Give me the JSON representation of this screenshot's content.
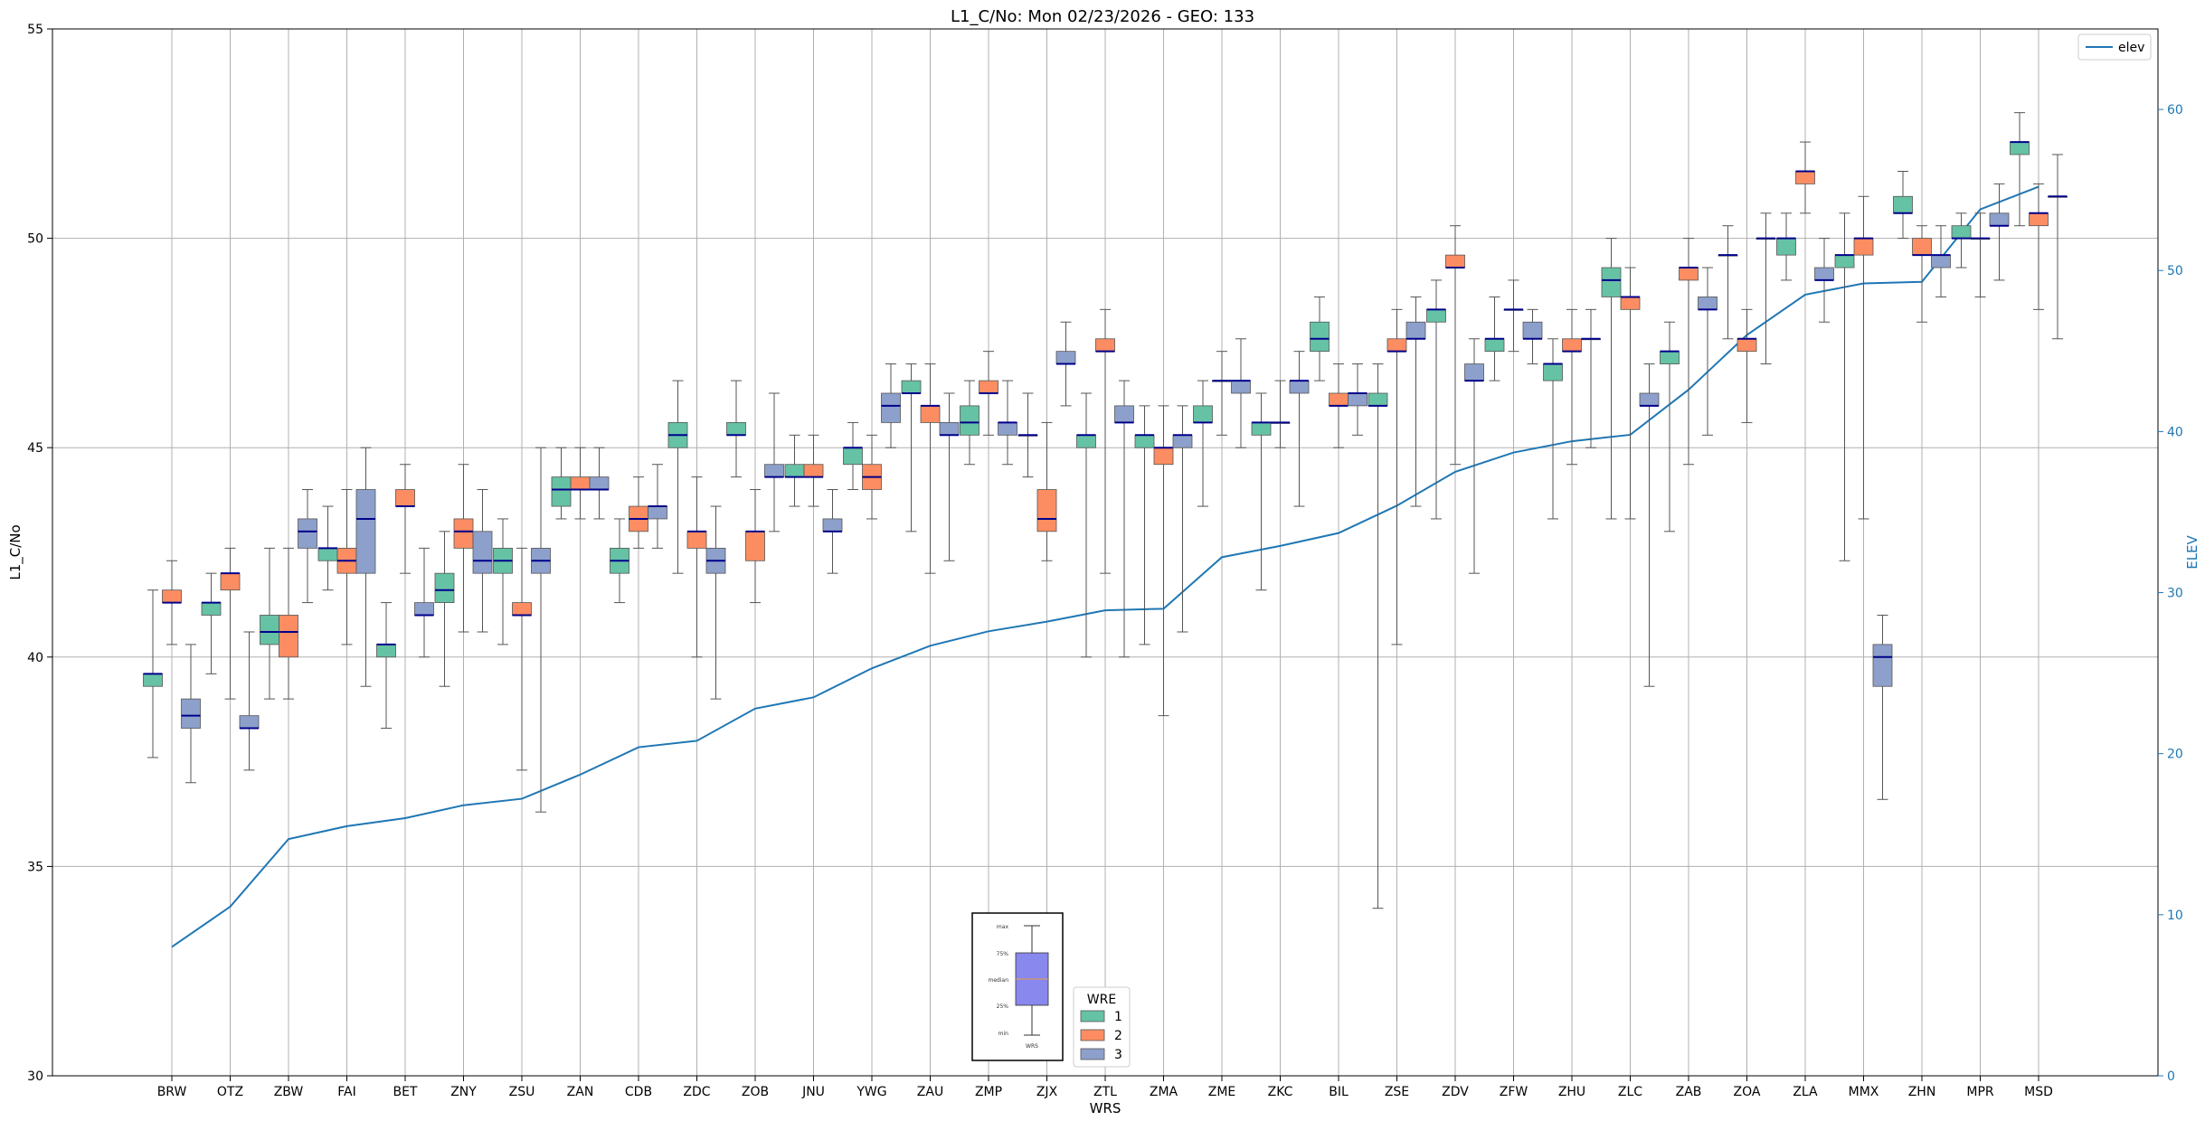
{
  "chart_data": {
    "type": "box",
    "title": "L1_C/No: Mon 02/23/2026 - GEO: 133",
    "xlabel": "WRS",
    "ylabel": "L1_C/No",
    "ylabel_right": "ELEV",
    "ylim": [
      30,
      55
    ],
    "ylim_right": [
      0,
      65
    ],
    "yticks": [
      30,
      35,
      40,
      45,
      50,
      55
    ],
    "yticks_right": [
      0,
      10,
      20,
      30,
      40,
      50,
      60
    ],
    "grid": true,
    "colors": {
      "1": "#66c2a5",
      "2": "#fc8d62",
      "3": "#8da0cb",
      "elev": "#1f77b4",
      "median": "#00008b"
    },
    "categories": [
      "BRW",
      "OTZ",
      "ZBW",
      "FAI",
      "BET",
      "ZNY",
      "ZSU",
      "ZAN",
      "CDB",
      "ZDC",
      "ZOB",
      "JNU",
      "YWG",
      "ZAU",
      "ZMP",
      "ZJX",
      "ZTL",
      "ZMA",
      "ZME",
      "ZKC",
      "BIL",
      "ZSE",
      "ZDV",
      "ZFW",
      "ZHU",
      "ZLC",
      "ZAB",
      "ZOA",
      "ZLA",
      "MMX",
      "ZHN",
      "MPR",
      "MSD"
    ],
    "elev_series": {
      "name": "elev",
      "values": [
        8,
        10.5,
        14.7,
        15.5,
        16,
        16.8,
        17.2,
        18.7,
        20.4,
        20.8,
        22.8,
        23.5,
        25.3,
        26.7,
        27.6,
        28.2,
        28.9,
        29,
        32.2,
        32.9,
        33.7,
        35.4,
        37.5,
        38.7,
        39.4,
        39.8,
        42.6,
        46,
        48.5,
        49.2,
        49.3,
        53.8,
        55.2
      ]
    },
    "legend": {
      "title": "WRE",
      "entries": [
        "1",
        "2",
        "3"
      ],
      "elev_label": "elev"
    },
    "inset": {
      "labels": [
        "max",
        "75%",
        "median",
        "25%",
        "min"
      ],
      "xlabel": "WRS"
    },
    "boxes": [
      {
        "cat": "BRW",
        "wre": "1",
        "min": 37.6,
        "q1": 39.3,
        "median": 39.6,
        "q3": 39.6,
        "max": 41.6
      },
      {
        "cat": "BRW",
        "wre": "2",
        "min": 40.3,
        "q1": 41.3,
        "median": 41.3,
        "q3": 41.6,
        "max": 42.3
      },
      {
        "cat": "BRW",
        "wre": "3",
        "min": 37.0,
        "q1": 38.3,
        "median": 38.6,
        "q3": 39.0,
        "max": 40.3
      },
      {
        "cat": "OTZ",
        "wre": "1",
        "min": 39.6,
        "q1": 41.0,
        "median": 41.3,
        "q3": 41.3,
        "max": 42.0
      },
      {
        "cat": "OTZ",
        "wre": "2",
        "min": 39.0,
        "q1": 41.6,
        "median": 42.0,
        "q3": 42.0,
        "max": 42.6
      },
      {
        "cat": "OTZ",
        "wre": "3",
        "min": 37.3,
        "q1": 38.3,
        "median": 38.3,
        "q3": 38.6,
        "max": 40.6
      },
      {
        "cat": "ZBW",
        "wre": "1",
        "min": 39.0,
        "q1": 40.3,
        "median": 40.6,
        "q3": 41.0,
        "max": 42.6
      },
      {
        "cat": "ZBW",
        "wre": "2",
        "min": 39.0,
        "q1": 40.0,
        "median": 40.6,
        "q3": 41.0,
        "max": 42.6
      },
      {
        "cat": "ZBW",
        "wre": "3",
        "min": 41.3,
        "q1": 42.6,
        "median": 43.0,
        "q3": 43.3,
        "max": 44.0
      },
      {
        "cat": "FAI",
        "wre": "1",
        "min": 41.6,
        "q1": 42.3,
        "median": 42.6,
        "q3": 42.6,
        "max": 43.6
      },
      {
        "cat": "FAI",
        "wre": "2",
        "min": 40.3,
        "q1": 42.0,
        "median": 42.3,
        "q3": 42.6,
        "max": 44.0
      },
      {
        "cat": "FAI",
        "wre": "3",
        "min": 39.3,
        "q1": 42.0,
        "median": 43.3,
        "q3": 44.0,
        "max": 45.0
      },
      {
        "cat": "BET",
        "wre": "1",
        "min": 38.3,
        "q1": 40.0,
        "median": 40.3,
        "q3": 40.3,
        "max": 41.3
      },
      {
        "cat": "BET",
        "wre": "2",
        "min": 42.0,
        "q1": 43.6,
        "median": 43.6,
        "q3": 44.0,
        "max": 44.6
      },
      {
        "cat": "BET",
        "wre": "3",
        "min": 40.0,
        "q1": 41.0,
        "median": 41.0,
        "q3": 41.3,
        "max": 42.6
      },
      {
        "cat": "ZNY",
        "wre": "1",
        "min": 39.3,
        "q1": 41.3,
        "median": 41.6,
        "q3": 42.0,
        "max": 43.0
      },
      {
        "cat": "ZNY",
        "wre": "2",
        "min": 40.6,
        "q1": 42.6,
        "median": 43.0,
        "q3": 43.3,
        "max": 44.6
      },
      {
        "cat": "ZNY",
        "wre": "3",
        "min": 40.6,
        "q1": 42.0,
        "median": 42.3,
        "q3": 43.0,
        "max": 44.0
      },
      {
        "cat": "ZSU",
        "wre": "1",
        "min": 40.3,
        "q1": 42.0,
        "median": 42.3,
        "q3": 42.6,
        "max": 43.3
      },
      {
        "cat": "ZSU",
        "wre": "2",
        "min": 37.3,
        "q1": 41.0,
        "median": 41.0,
        "q3": 41.3,
        "max": 42.6
      },
      {
        "cat": "ZSU",
        "wre": "3",
        "min": 36.3,
        "q1": 42.0,
        "median": 42.3,
        "q3": 42.6,
        "max": 45.0
      },
      {
        "cat": "ZAN",
        "wre": "1",
        "min": 43.3,
        "q1": 43.6,
        "median": 44.0,
        "q3": 44.3,
        "max": 45.0
      },
      {
        "cat": "ZAN",
        "wre": "2",
        "min": 43.3,
        "q1": 44.0,
        "median": 44.0,
        "q3": 44.3,
        "max": 45.0
      },
      {
        "cat": "ZAN",
        "wre": "3",
        "min": 43.3,
        "q1": 44.0,
        "median": 44.0,
        "q3": 44.3,
        "max": 45.0
      },
      {
        "cat": "CDB",
        "wre": "1",
        "min": 41.3,
        "q1": 42.0,
        "median": 42.3,
        "q3": 42.6,
        "max": 43.3
      },
      {
        "cat": "CDB",
        "wre": "2",
        "min": 42.6,
        "q1": 43.0,
        "median": 43.3,
        "q3": 43.6,
        "max": 44.3
      },
      {
        "cat": "CDB",
        "wre": "3",
        "min": 42.6,
        "q1": 43.3,
        "median": 43.6,
        "q3": 43.6,
        "max": 44.6
      },
      {
        "cat": "ZDC",
        "wre": "1",
        "min": 42.0,
        "q1": 45.0,
        "median": 45.3,
        "q3": 45.6,
        "max": 46.6
      },
      {
        "cat": "ZDC",
        "wre": "2",
        "min": 40.0,
        "q1": 42.6,
        "median": 43.0,
        "q3": 43.0,
        "max": 44.3
      },
      {
        "cat": "ZDC",
        "wre": "3",
        "min": 39.0,
        "q1": 42.0,
        "median": 42.3,
        "q3": 42.6,
        "max": 43.6
      },
      {
        "cat": "ZOB",
        "wre": "1",
        "min": 44.3,
        "q1": 45.3,
        "median": 45.3,
        "q3": 45.6,
        "max": 46.6
      },
      {
        "cat": "ZOB",
        "wre": "2",
        "min": 41.3,
        "q1": 42.3,
        "median": 43.0,
        "q3": 43.0,
        "max": 44.0
      },
      {
        "cat": "ZOB",
        "wre": "3",
        "min": 43.0,
        "q1": 44.3,
        "median": 44.3,
        "q3": 44.6,
        "max": 46.3
      },
      {
        "cat": "JNU",
        "wre": "1",
        "min": 43.6,
        "q1": 44.3,
        "median": 44.3,
        "q3": 44.6,
        "max": 45.3
      },
      {
        "cat": "JNU",
        "wre": "2",
        "min": 43.6,
        "q1": 44.3,
        "median": 44.3,
        "q3": 44.6,
        "max": 45.3
      },
      {
        "cat": "JNU",
        "wre": "3",
        "min": 42.0,
        "q1": 43.0,
        "median": 43.0,
        "q3": 43.3,
        "max": 44.0
      },
      {
        "cat": "YWG",
        "wre": "1",
        "min": 44.0,
        "q1": 44.6,
        "median": 45.0,
        "q3": 45.0,
        "max": 45.6
      },
      {
        "cat": "YWG",
        "wre": "2",
        "min": 43.3,
        "q1": 44.0,
        "median": 44.3,
        "q3": 44.6,
        "max": 45.3
      },
      {
        "cat": "YWG",
        "wre": "3",
        "min": 45.0,
        "q1": 45.6,
        "median": 46.0,
        "q3": 46.3,
        "max": 47.0
      },
      {
        "cat": "ZAU",
        "wre": "1",
        "min": 43.0,
        "q1": 46.3,
        "median": 46.3,
        "q3": 46.6,
        "max": 47.0
      },
      {
        "cat": "ZAU",
        "wre": "2",
        "min": 42.0,
        "q1": 45.6,
        "median": 46.0,
        "q3": 46.0,
        "max": 47.0
      },
      {
        "cat": "ZAU",
        "wre": "3",
        "min": 42.3,
        "q1": 45.3,
        "median": 45.3,
        "q3": 45.6,
        "max": 46.3
      },
      {
        "cat": "ZMP",
        "wre": "1",
        "min": 44.6,
        "q1": 45.3,
        "median": 45.6,
        "q3": 46.0,
        "max": 46.6
      },
      {
        "cat": "ZMP",
        "wre": "2",
        "min": 45.3,
        "q1": 46.3,
        "median": 46.3,
        "q3": 46.6,
        "max": 47.3
      },
      {
        "cat": "ZMP",
        "wre": "3",
        "min": 44.6,
        "q1": 45.3,
        "median": 45.6,
        "q3": 45.6,
        "max": 46.6
      },
      {
        "cat": "ZJX",
        "wre": "1",
        "min": 44.3,
        "q1": 45.3,
        "median": 45.3,
        "q3": 45.3,
        "max": 46.3
      },
      {
        "cat": "ZJX",
        "wre": "2",
        "min": 42.3,
        "q1": 43.0,
        "median": 43.3,
        "q3": 44.0,
        "max": 45.6
      },
      {
        "cat": "ZJX",
        "wre": "3",
        "min": 46.0,
        "q1": 47.0,
        "median": 47.0,
        "q3": 47.3,
        "max": 48.0
      },
      {
        "cat": "ZTL",
        "wre": "1",
        "min": 40.0,
        "q1": 45.0,
        "median": 45.3,
        "q3": 45.3,
        "max": 46.3
      },
      {
        "cat": "ZTL",
        "wre": "2",
        "min": 42.0,
        "q1": 47.3,
        "median": 47.3,
        "q3": 47.6,
        "max": 48.3
      },
      {
        "cat": "ZTL",
        "wre": "3",
        "min": 40.0,
        "q1": 45.6,
        "median": 45.6,
        "q3": 46.0,
        "max": 46.6
      },
      {
        "cat": "ZMA",
        "wre": "1",
        "min": 40.3,
        "q1": 45.0,
        "median": 45.3,
        "q3": 45.3,
        "max": 46.0
      },
      {
        "cat": "ZMA",
        "wre": "2",
        "min": 38.6,
        "q1": 44.6,
        "median": 45.0,
        "q3": 45.0,
        "max": 46.0
      },
      {
        "cat": "ZMA",
        "wre": "3",
        "min": 40.6,
        "q1": 45.0,
        "median": 45.3,
        "q3": 45.3,
        "max": 46.0
      },
      {
        "cat": "ZME",
        "wre": "1",
        "min": 43.6,
        "q1": 45.6,
        "median": 45.6,
        "q3": 46.0,
        "max": 46.6
      },
      {
        "cat": "ZME",
        "wre": "2",
        "min": 45.3,
        "q1": 46.6,
        "median": 46.6,
        "q3": 46.6,
        "max": 47.3
      },
      {
        "cat": "ZME",
        "wre": "3",
        "min": 45.0,
        "q1": 46.3,
        "median": 46.6,
        "q3": 46.6,
        "max": 47.6
      },
      {
        "cat": "ZKC",
        "wre": "1",
        "min": 41.6,
        "q1": 45.3,
        "median": 45.6,
        "q3": 45.6,
        "max": 46.3
      },
      {
        "cat": "ZKC",
        "wre": "2",
        "min": 45.0,
        "q1": 45.6,
        "median": 45.6,
        "q3": 45.6,
        "max": 46.6
      },
      {
        "cat": "ZKC",
        "wre": "3",
        "min": 43.6,
        "q1": 46.3,
        "median": 46.6,
        "q3": 46.6,
        "max": 47.3
      },
      {
        "cat": "BIL",
        "wre": "1",
        "min": 46.6,
        "q1": 47.3,
        "median": 47.6,
        "q3": 48.0,
        "max": 48.6
      },
      {
        "cat": "BIL",
        "wre": "2",
        "min": 45.0,
        "q1": 46.0,
        "median": 46.0,
        "q3": 46.3,
        "max": 47.0
      },
      {
        "cat": "BIL",
        "wre": "3",
        "min": 45.3,
        "q1": 46.0,
        "median": 46.3,
        "q3": 46.3,
        "max": 47.0
      },
      {
        "cat": "ZSE",
        "wre": "1",
        "min": 34.0,
        "q1": 46.0,
        "median": 46.0,
        "q3": 46.3,
        "max": 47.0
      },
      {
        "cat": "ZSE",
        "wre": "2",
        "min": 40.3,
        "q1": 47.3,
        "median": 47.3,
        "q3": 47.6,
        "max": 48.3
      },
      {
        "cat": "ZSE",
        "wre": "3",
        "min": 43.6,
        "q1": 47.6,
        "median": 47.6,
        "q3": 48.0,
        "max": 48.6
      },
      {
        "cat": "ZDV",
        "wre": "1",
        "min": 43.3,
        "q1": 48.0,
        "median": 48.3,
        "q3": 48.3,
        "max": 49.0
      },
      {
        "cat": "ZDV",
        "wre": "2",
        "min": 44.6,
        "q1": 49.3,
        "median": 49.3,
        "q3": 49.6,
        "max": 50.3
      },
      {
        "cat": "ZDV",
        "wre": "3",
        "min": 42.0,
        "q1": 46.6,
        "median": 46.6,
        "q3": 47.0,
        "max": 47.6
      },
      {
        "cat": "ZFW",
        "wre": "1",
        "min": 46.6,
        "q1": 47.3,
        "median": 47.6,
        "q3": 47.6,
        "max": 48.6
      },
      {
        "cat": "ZFW",
        "wre": "2",
        "min": 47.3,
        "q1": 48.3,
        "median": 48.3,
        "q3": 48.3,
        "max": 49.0
      },
      {
        "cat": "ZFW",
        "wre": "3",
        "min": 47.0,
        "q1": 47.6,
        "median": 47.6,
        "q3": 48.0,
        "max": 48.3
      },
      {
        "cat": "ZHU",
        "wre": "1",
        "min": 43.3,
        "q1": 46.6,
        "median": 47.0,
        "q3": 47.0,
        "max": 47.6
      },
      {
        "cat": "ZHU",
        "wre": "2",
        "min": 44.6,
        "q1": 47.3,
        "median": 47.3,
        "q3": 47.6,
        "max": 48.3
      },
      {
        "cat": "ZHU",
        "wre": "3",
        "min": 45.0,
        "q1": 47.6,
        "median": 47.6,
        "q3": 47.6,
        "max": 48.3
      },
      {
        "cat": "ZLC",
        "wre": "1",
        "min": 43.3,
        "q1": 48.6,
        "median": 49.0,
        "q3": 49.3,
        "max": 50.0
      },
      {
        "cat": "ZLC",
        "wre": "2",
        "min": 43.3,
        "q1": 48.3,
        "median": 48.6,
        "q3": 48.6,
        "max": 49.3
      },
      {
        "cat": "ZLC",
        "wre": "3",
        "min": 39.3,
        "q1": 46.0,
        "median": 46.0,
        "q3": 46.3,
        "max": 47.0
      },
      {
        "cat": "ZAB",
        "wre": "1",
        "min": 43.0,
        "q1": 47.0,
        "median": 47.3,
        "q3": 47.3,
        "max": 48.0
      },
      {
        "cat": "ZAB",
        "wre": "2",
        "min": 44.6,
        "q1": 49.0,
        "median": 49.3,
        "q3": 49.3,
        "max": 50.0
      },
      {
        "cat": "ZAB",
        "wre": "3",
        "min": 45.3,
        "q1": 48.3,
        "median": 48.3,
        "q3": 48.6,
        "max": 49.3
      },
      {
        "cat": "ZOA",
        "wre": "1",
        "min": 47.6,
        "q1": 49.6,
        "median": 49.6,
        "q3": 49.6,
        "max": 50.3
      },
      {
        "cat": "ZOA",
        "wre": "2",
        "min": 45.6,
        "q1": 47.3,
        "median": 47.6,
        "q3": 47.6,
        "max": 48.3
      },
      {
        "cat": "ZOA",
        "wre": "3",
        "min": 47.0,
        "q1": 50.0,
        "median": 50.0,
        "q3": 50.0,
        "max": 50.6
      },
      {
        "cat": "ZLA",
        "wre": "1",
        "min": 49.0,
        "q1": 49.6,
        "median": 50.0,
        "q3": 50.0,
        "max": 50.6
      },
      {
        "cat": "ZLA",
        "wre": "2",
        "min": 50.6,
        "q1": 51.3,
        "median": 51.6,
        "q3": 51.6,
        "max": 52.3
      },
      {
        "cat": "ZLA",
        "wre": "3",
        "min": 48.0,
        "q1": 49.0,
        "median": 49.0,
        "q3": 49.3,
        "max": 50.0
      },
      {
        "cat": "MMX",
        "wre": "1",
        "min": 42.3,
        "q1": 49.3,
        "median": 49.6,
        "q3": 49.6,
        "max": 50.6
      },
      {
        "cat": "MMX",
        "wre": "2",
        "min": 43.3,
        "q1": 49.6,
        "median": 50.0,
        "q3": 50.0,
        "max": 51.0
      },
      {
        "cat": "MMX",
        "wre": "3",
        "min": 36.6,
        "q1": 39.3,
        "median": 40.0,
        "q3": 40.3,
        "max": 41.0
      },
      {
        "cat": "ZHN",
        "wre": "1",
        "min": 50.0,
        "q1": 50.6,
        "median": 50.6,
        "q3": 51.0,
        "max": 51.6
      },
      {
        "cat": "ZHN",
        "wre": "2",
        "min": 48.0,
        "q1": 49.6,
        "median": 49.6,
        "q3": 50.0,
        "max": 50.3
      },
      {
        "cat": "ZHN",
        "wre": "3",
        "min": 48.6,
        "q1": 49.3,
        "median": 49.6,
        "q3": 49.6,
        "max": 50.3
      },
      {
        "cat": "MPR",
        "wre": "1",
        "min": 49.3,
        "q1": 50.0,
        "median": 50.0,
        "q3": 50.3,
        "max": 50.6
      },
      {
        "cat": "MPR",
        "wre": "2",
        "min": 48.6,
        "q1": 50.0,
        "median": 50.0,
        "q3": 50.0,
        "max": 50.6
      },
      {
        "cat": "MPR",
        "wre": "3",
        "min": 49.0,
        "q1": 50.3,
        "median": 50.3,
        "q3": 50.6,
        "max": 51.3
      },
      {
        "cat": "MSD",
        "wre": "1",
        "min": 50.3,
        "q1": 52.0,
        "median": 52.3,
        "q3": 52.3,
        "max": 53.0
      },
      {
        "cat": "MSD",
        "wre": "2",
        "min": 48.3,
        "q1": 50.3,
        "median": 50.6,
        "q3": 50.6,
        "max": 51.3
      },
      {
        "cat": "MSD",
        "wre": "3",
        "min": 47.6,
        "q1": 51.0,
        "median": 51.0,
        "q3": 51.0,
        "max": 52.0
      }
    ]
  }
}
